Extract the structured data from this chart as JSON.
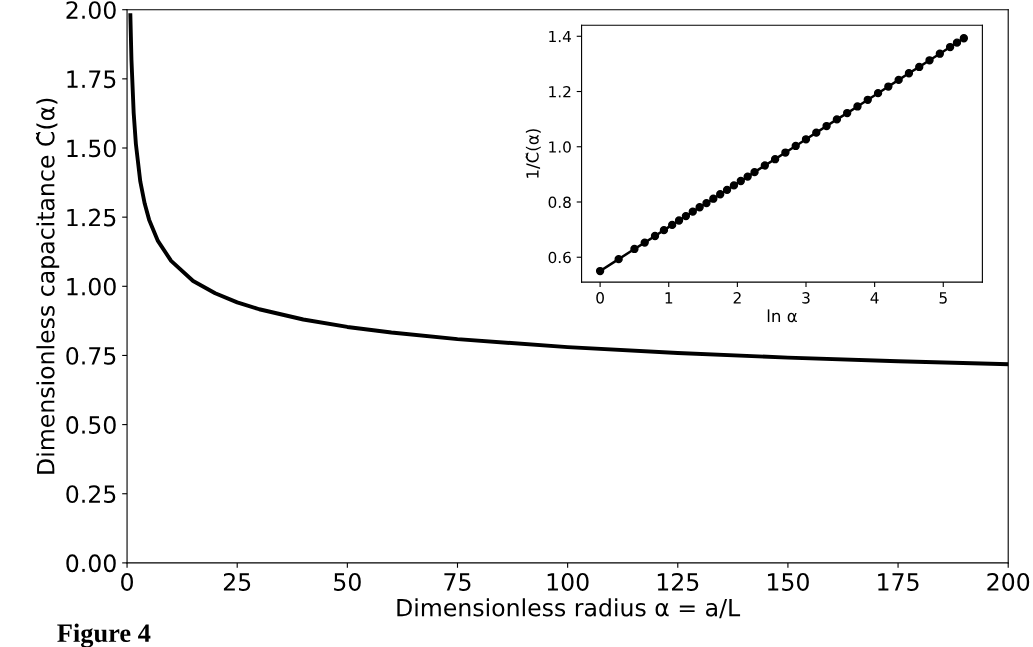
{
  "chart_data": [
    {
      "type": "line",
      "xlabel": "Dimensionless radius α = a/L",
      "ylabel": "Dimensionless capacitance C̃(α)",
      "annotations": [
        "Figure 4"
      ],
      "series": [
        {
          "color": "#000000",
          "x": [
            0.75,
            1,
            1.5,
            2,
            3,
            4,
            5,
            7,
            10,
            15,
            20,
            25,
            30,
            40,
            50,
            60,
            75,
            100,
            125,
            150,
            175,
            200
          ],
          "values": [
            1.98,
            1.818,
            1.627,
            1.515,
            1.379,
            1.299,
            1.241,
            1.164,
            1.092,
            1.019,
            0.975,
            0.942,
            0.917,
            0.88,
            0.853,
            0.833,
            0.809,
            0.78,
            0.759,
            0.742,
            0.729,
            0.718
          ]
        }
      ],
      "xlim": [
        0,
        200
      ],
      "ylim": [
        0,
        2
      ],
      "xticks": [
        0,
        25,
        50,
        75,
        100,
        125,
        150,
        175,
        200
      ],
      "yticks": [
        {
          "value": 0,
          "label": "0.00"
        },
        {
          "value": 0.25,
          "label": "0.25"
        },
        {
          "value": 0.5,
          "label": "0.50"
        },
        {
          "value": 0.75,
          "label": "0.75"
        },
        {
          "value": 1,
          "label": "1.00"
        },
        {
          "value": 1.25,
          "label": "1.25"
        },
        {
          "value": 1.5,
          "label": "1.50"
        },
        {
          "value": 1.75,
          "label": "1.75"
        },
        {
          "value": 2,
          "label": "2.00"
        }
      ],
      "marker": "none",
      "grid": false,
      "legend": false
    },
    {
      "type": "line",
      "xlabel": "ln α",
      "ylabel": "1/C̃(α)",
      "series": [
        {
          "color": "#000000",
          "x": [
            0,
            0.27,
            0.5,
            0.65,
            0.8,
            0.93,
            1.05,
            1.15,
            1.25,
            1.35,
            1.45,
            1.55,
            1.65,
            1.75,
            1.85,
            1.95,
            2.05,
            2.15,
            2.25,
            2.4,
            2.55,
            2.7,
            2.85,
            3.0,
            3.15,
            3.3,
            3.45,
            3.6,
            3.75,
            3.9,
            4.05,
            4.2,
            4.35,
            4.5,
            4.65,
            4.8,
            4.95,
            5.1,
            5.2,
            5.3
          ],
          "values": [
            0.55,
            0.593,
            0.63,
            0.653,
            0.677,
            0.698,
            0.717,
            0.733,
            0.749,
            0.765,
            0.781,
            0.796,
            0.812,
            0.828,
            0.844,
            0.86,
            0.876,
            0.892,
            0.908,
            0.932,
            0.955,
            0.979,
            1.003,
            1.027,
            1.051,
            1.075,
            1.099,
            1.122,
            1.146,
            1.17,
            1.194,
            1.218,
            1.242,
            1.266,
            1.289,
            1.313,
            1.337,
            1.361,
            1.377,
            1.393
          ]
        }
      ],
      "xlim": [
        -0.27,
        5.57
      ],
      "ylim": [
        0.51,
        1.44
      ],
      "xticks": [
        0,
        1,
        2,
        3,
        4,
        5
      ],
      "yticks": [
        {
          "value": 0.6,
          "label": "0.6"
        },
        {
          "value": 0.8,
          "label": "0.8"
        },
        {
          "value": 1.0,
          "label": "1.0"
        },
        {
          "value": 1.2,
          "label": "1.2"
        },
        {
          "value": 1.4,
          "label": "1.4"
        }
      ],
      "marker": "circle",
      "grid": false,
      "legend": false
    }
  ]
}
